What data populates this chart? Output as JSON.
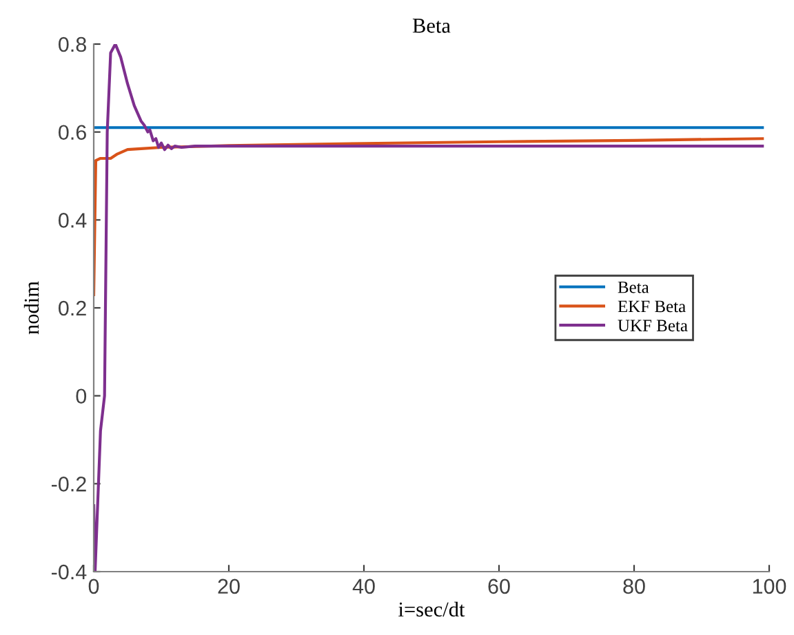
{
  "chart_data": {
    "type": "line",
    "title": "Beta",
    "xlabel": "i=sec/dt",
    "ylabel": "nodim",
    "xlim": [
      0,
      100
    ],
    "xticks": [
      0,
      20,
      40,
      60,
      80,
      100
    ],
    "ylim": [
      -0.4,
      0.8
    ],
    "yticks": [
      -0.4,
      -0.2,
      0,
      0.2,
      0.4,
      0.6,
      0.8
    ],
    "grid": false,
    "legend": "right",
    "marker": "none",
    "line_style": "solid",
    "series": [
      {
        "name": "Beta",
        "color": "#0072bd",
        "x": [
          0,
          99
        ],
        "values": [
          0.61,
          0.61
        ]
      },
      {
        "name": "EKF Beta",
        "color": "#d95319",
        "x": [
          0,
          0.3,
          1,
          2.5,
          3.5,
          5,
          7,
          10,
          20,
          40,
          60,
          80,
          99
        ],
        "values": [
          0.23,
          0.535,
          0.54,
          0.54,
          0.55,
          0.56,
          0.562,
          0.565,
          0.569,
          0.574,
          0.578,
          0.581,
          0.585
        ]
      },
      {
        "name": "UKF Beta",
        "color": "#7e2f8e",
        "x": [
          0,
          0.2,
          1,
          1.6,
          2,
          2.5,
          3.2,
          4,
          5,
          6,
          7,
          7.5,
          8,
          8.3,
          8.8,
          9.2,
          9.6,
          10,
          10.5,
          11,
          11.5,
          12,
          13,
          15,
          20,
          40,
          60,
          80,
          99
        ],
        "values": [
          -0.25,
          -0.4,
          -0.08,
          0,
          0.6,
          0.78,
          0.8,
          0.77,
          0.71,
          0.66,
          0.625,
          0.615,
          0.6,
          0.605,
          0.58,
          0.585,
          0.565,
          0.575,
          0.56,
          0.57,
          0.562,
          0.568,
          0.565,
          0.568,
          0.568,
          0.568,
          0.568,
          0.568,
          0.568
        ]
      }
    ]
  }
}
